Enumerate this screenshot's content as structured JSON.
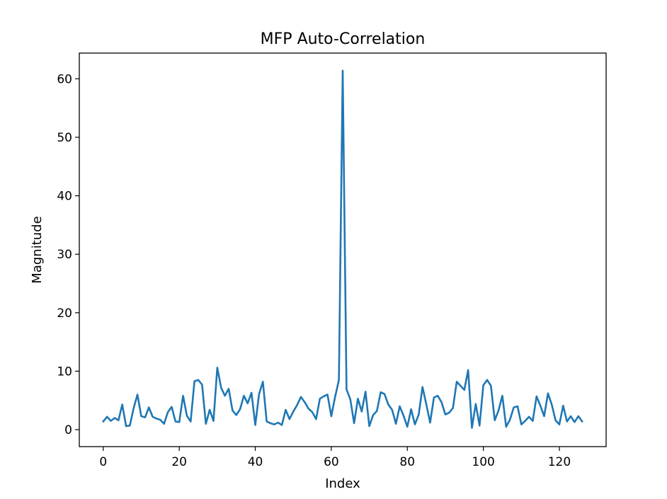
{
  "chart_data": {
    "type": "line",
    "title": "MFP Auto-Correlation",
    "xlabel": "Index",
    "ylabel": "Magnitude",
    "xlim": [
      -6.3,
      132.3
    ],
    "ylim": [
      -2.9,
      64.4
    ],
    "xticks": [
      0,
      20,
      40,
      60,
      80,
      100,
      120
    ],
    "yticks": [
      0,
      10,
      20,
      30,
      40,
      50,
      60
    ],
    "grid": false,
    "colors": {
      "line": "#1f77b4",
      "axes": "#000000"
    },
    "series": [
      {
        "x": [
          0,
          1,
          2,
          3,
          4,
          5,
          6,
          7,
          8,
          9,
          10,
          11,
          12,
          13,
          14,
          15,
          16,
          17,
          18,
          19,
          20,
          21,
          22,
          23,
          24,
          25,
          26,
          27,
          28,
          29,
          30,
          31,
          32,
          33,
          34,
          35,
          36,
          37,
          38,
          39,
          40,
          41,
          42,
          43,
          44,
          45,
          46,
          47,
          48,
          49,
          50,
          51,
          52,
          53,
          54,
          55,
          56,
          57,
          58,
          59,
          60,
          61,
          62,
          63,
          64,
          65,
          66,
          67,
          68,
          69,
          70,
          71,
          72,
          73,
          74,
          75,
          76,
          77,
          78,
          79,
          80,
          81,
          82,
          83,
          84,
          85,
          86,
          87,
          88,
          89,
          90,
          91,
          92,
          93,
          94,
          95,
          96,
          97,
          98,
          99,
          100,
          101,
          102,
          103,
          104,
          105,
          106,
          107,
          108,
          109,
          110,
          111,
          112,
          113,
          114,
          115,
          116,
          117,
          118,
          119,
          120,
          121,
          122,
          123,
          124,
          125,
          126
        ],
        "values": [
          1.4,
          2.2,
          1.5,
          2.0,
          1.6,
          4.3,
          0.6,
          0.7,
          3.7,
          6.0,
          2.3,
          2.1,
          3.8,
          2.2,
          1.9,
          1.7,
          1.0,
          3.0,
          3.9,
          1.4,
          1.3,
          5.8,
          2.4,
          1.4,
          8.3,
          8.5,
          7.7,
          1.0,
          3.4,
          1.5,
          10.6,
          7.2,
          5.8,
          7.0,
          3.3,
          2.5,
          3.5,
          5.8,
          4.5,
          6.3,
          0.8,
          6.1,
          8.2,
          1.4,
          1.1,
          0.9,
          1.2,
          0.8,
          3.4,
          1.8,
          3.1,
          4.2,
          5.6,
          4.7,
          3.6,
          3.0,
          1.8,
          5.3,
          5.7,
          6.0,
          2.3,
          5.6,
          8.5,
          61.4,
          6.9,
          5.2,
          1.1,
          5.3,
          3.1,
          6.5,
          0.6,
          2.5,
          3.2,
          6.4,
          6.1,
          4.3,
          3.4,
          1.0,
          4.0,
          2.4,
          0.5,
          3.5,
          0.9,
          2.6,
          7.3,
          4.3,
          1.2,
          5.5,
          5.8,
          4.7,
          2.6,
          2.9,
          3.7,
          8.2,
          7.5,
          6.8,
          10.2,
          0.3,
          4.4,
          0.7,
          7.6,
          8.5,
          7.5,
          1.6,
          3.3,
          5.8,
          0.5,
          1.7,
          3.8,
          4.0,
          0.9,
          1.5,
          2.2,
          1.5,
          5.7,
          4.1,
          2.3,
          6.2,
          4.3,
          1.6,
          0.9,
          4.1,
          1.4,
          2.3,
          1.3,
          2.3,
          1.4
        ]
      }
    ]
  }
}
